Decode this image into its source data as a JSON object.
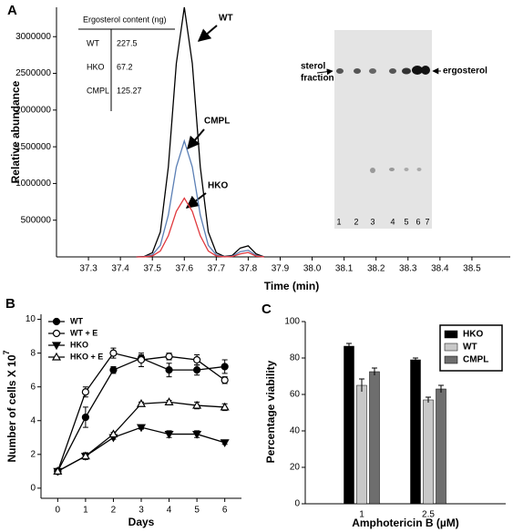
{
  "chart_data": [
    {
      "type": "line",
      "panel": "A",
      "xlabel": "Time (min)",
      "ylabel": "Relative abundance",
      "x": [
        37.45,
        37.475,
        37.5,
        37.525,
        37.55,
        37.575,
        37.6,
        37.625,
        37.65,
        37.675,
        37.7,
        37.725,
        37.75,
        37.775,
        37.8,
        37.825,
        37.85
      ],
      "series": [
        {
          "name": "WT",
          "color": "#000000",
          "values": [
            0,
            6000,
            57000,
            340000,
            1225000,
            2635000,
            3400000,
            2635000,
            1225000,
            340000,
            57000,
            6000,
            20000,
            120000,
            150000,
            40000,
            0
          ]
        },
        {
          "name": "CMPL",
          "color": "#5b7fb5",
          "values": [
            0,
            3000,
            27000,
            158000,
            570000,
            1225000,
            1580000,
            1225000,
            570000,
            158000,
            27000,
            3000,
            10000,
            70000,
            90000,
            20000,
            0
          ]
        },
        {
          "name": "HKO",
          "color": "#e0393e",
          "values": [
            0,
            1000,
            13000,
            80000,
            288000,
            620000,
            800000,
            620000,
            288000,
            80000,
            13000,
            1000,
            5000,
            40000,
            60000,
            10000,
            0
          ]
        }
      ],
      "xlim": [
        37.2,
        38.62
      ],
      "xticks": [
        37.3,
        37.4,
        37.5,
        37.6,
        37.7,
        37.8,
        37.9,
        {
          "value": 38,
          "label": "38.0"
        },
        38.1,
        38.2,
        38.3,
        38.4,
        38.5
      ],
      "ylim": [
        0,
        3400000
      ],
      "yticks": [
        500000,
        1000000,
        1500000,
        2000000,
        2500000,
        3000000
      ],
      "grid": false,
      "inset_table": {
        "title": "Ergosterol content (ng)",
        "rows": [
          [
            "WT",
            227.5
          ],
          [
            "HKO",
            67.2
          ],
          [
            "CMPL",
            125.27
          ]
        ]
      },
      "gel": {
        "left_label": [
          "sterol",
          "fraction"
        ],
        "right_label": "ergosterol",
        "lanes": [
          "1",
          "2",
          "3",
          "4",
          "5",
          "6",
          "7"
        ]
      }
    },
    {
      "type": "line",
      "panel": "B",
      "xlabel": "Days",
      "ylabel": "Number of cells X 10",
      "ylabel_exponent": "7",
      "x": [
        0,
        1,
        2,
        3,
        4,
        5,
        6
      ],
      "series": [
        {
          "name": "WT",
          "color": "#000000",
          "marker": "circle",
          "filled": true,
          "values": [
            1,
            4.2,
            7.0,
            7.7,
            7.0,
            7.0,
            7.2
          ],
          "errors": [
            0.1,
            0.6,
            0.2,
            0.2,
            0.4,
            0.3,
            0.4
          ]
        },
        {
          "name": "WT + E",
          "color": "#000000",
          "marker": "circle",
          "filled": false,
          "values": [
            1,
            5.7,
            8.0,
            7.6,
            7.8,
            7.6,
            6.4
          ],
          "errors": [
            0.1,
            0.3,
            0.3,
            0.4,
            0.2,
            0.3,
            0.2
          ]
        },
        {
          "name": "HKO",
          "color": "#000000",
          "marker": "triangle-down",
          "filled": true,
          "values": [
            1,
            1.9,
            3.0,
            3.6,
            3.2,
            3.2,
            2.7
          ],
          "errors": [
            0.1,
            0.2,
            0.1,
            0.1,
            0.2,
            0.2,
            0.1
          ]
        },
        {
          "name": "HKO + E",
          "color": "#000000",
          "marker": "triangle-up",
          "filled": false,
          "values": [
            1,
            1.9,
            3.2,
            5.0,
            5.1,
            4.9,
            4.8
          ],
          "errors": [
            0.1,
            0.1,
            0.1,
            0.1,
            0.1,
            0.2,
            0.2
          ]
        }
      ],
      "xlim": [
        -0.6,
        6.6
      ],
      "xticks": [
        0,
        1,
        2,
        3,
        4,
        5,
        6
      ],
      "ylim": [
        -0.6,
        10.3
      ],
      "yticks": [
        0,
        2,
        4,
        6,
        8,
        10
      ],
      "grid": false,
      "legend": "upper left"
    },
    {
      "type": "bar",
      "panel": "C",
      "xlabel": "Amphotericin B (µM)",
      "ylabel": "Percentage viability",
      "categories": [
        "1",
        "2.5"
      ],
      "series": [
        {
          "name": "HKO",
          "color": "#000000",
          "values": [
            86.5,
            79
          ],
          "errors": [
            1.5,
            1
          ]
        },
        {
          "name": "WT",
          "color": "#c8c8c8",
          "values": [
            65,
            57
          ],
          "errors": [
            3.5,
            1.5
          ]
        },
        {
          "name": "CMPL",
          "color": "#6e6e6e",
          "values": [
            72.5,
            63
          ],
          "errors": [
            2,
            2
          ]
        }
      ],
      "ylim": [
        0,
        100
      ],
      "yticks": [
        0,
        20,
        40,
        60,
        80,
        100
      ],
      "grid": false,
      "legend": "upper right"
    }
  ]
}
